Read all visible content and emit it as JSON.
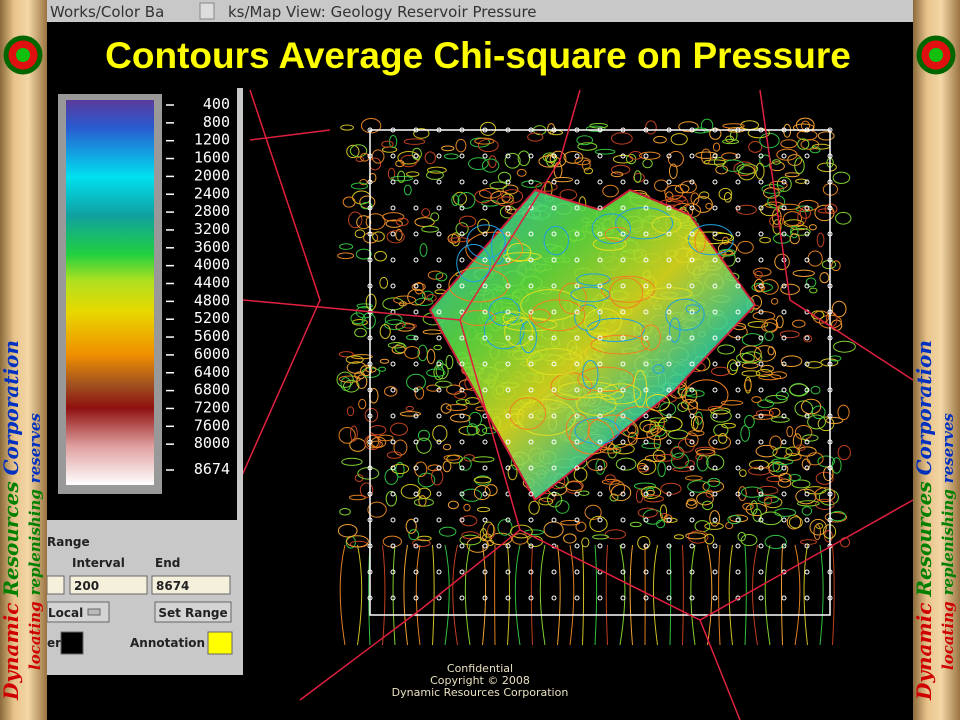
{
  "window_titles": [
    "Works/Color Ba",
    "ks/Map View: Geology Reservoir Pressure"
  ],
  "title": "Contours Average Chi-square on Pressure",
  "banner": {
    "company": [
      "Dynamic",
      "Resources",
      "Corporation"
    ],
    "tagline": [
      "locating",
      "replenishing",
      "reserves"
    ]
  },
  "color_bar": {
    "labels": [
      "400",
      "800",
      "1200",
      "1600",
      "2000",
      "2400",
      "2800",
      "3200",
      "3600",
      "4000",
      "4400",
      "4800",
      "5200",
      "5600",
      "6000",
      "6400",
      "6800",
      "7200",
      "7600",
      "8000",
      "8674"
    ]
  },
  "range_panel": {
    "heading": "Range",
    "interval_label": "Interval",
    "end_label": "End",
    "interval": "200",
    "end": "8674",
    "mode": "Local",
    "set_range": "Set Range",
    "color_label": "er",
    "annotation": "Annotation"
  },
  "footer": [
    "Confidential",
    "Copyright © 2008",
    "Dynamic Resources Corporation"
  ]
}
